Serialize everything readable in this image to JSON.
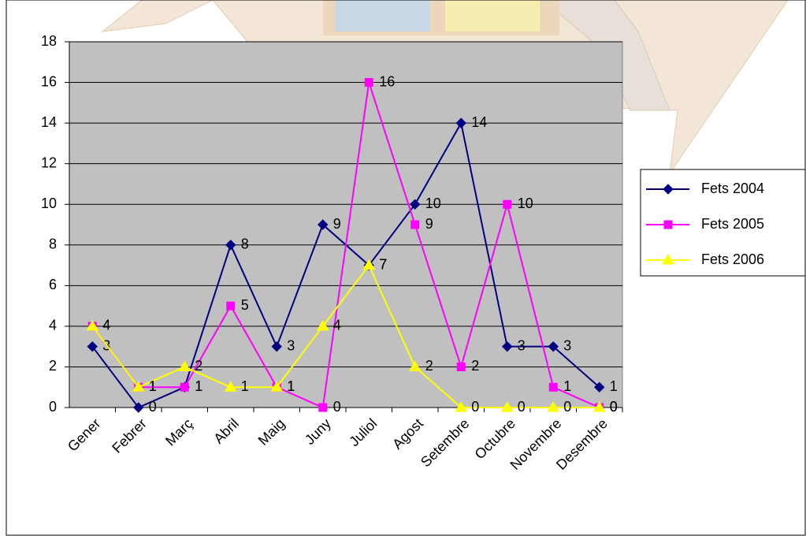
{
  "chart_data": {
    "type": "line",
    "categories": [
      "Gener",
      "Febrer",
      "Març",
      "Abril",
      "Maig",
      "Juny",
      "Juliol",
      "Agost",
      "Setembre",
      "Octubre",
      "Novembre",
      "Desembre"
    ],
    "series": [
      {
        "name": "Fets 2004",
        "color": "#000080",
        "marker": "diamond",
        "values": [
          3,
          0,
          1,
          8,
          3,
          9,
          7,
          10,
          14,
          3,
          3,
          1
        ]
      },
      {
        "name": "Fets 2005",
        "color": "#ff00ff",
        "marker": "square",
        "values": [
          4,
          1,
          1,
          5,
          1,
          0,
          16,
          9,
          2,
          10,
          1,
          0
        ]
      },
      {
        "name": "Fets 2006",
        "color": "#ffff00",
        "marker": "triangle",
        "values": [
          4,
          1,
          2,
          1,
          1,
          4,
          7,
          2,
          0,
          0,
          0,
          0
        ]
      }
    ],
    "ylim": [
      0,
      18
    ],
    "yticks": [
      0,
      2,
      4,
      6,
      8,
      10,
      12,
      14,
      16,
      18
    ],
    "grid": true,
    "legend": "right"
  }
}
